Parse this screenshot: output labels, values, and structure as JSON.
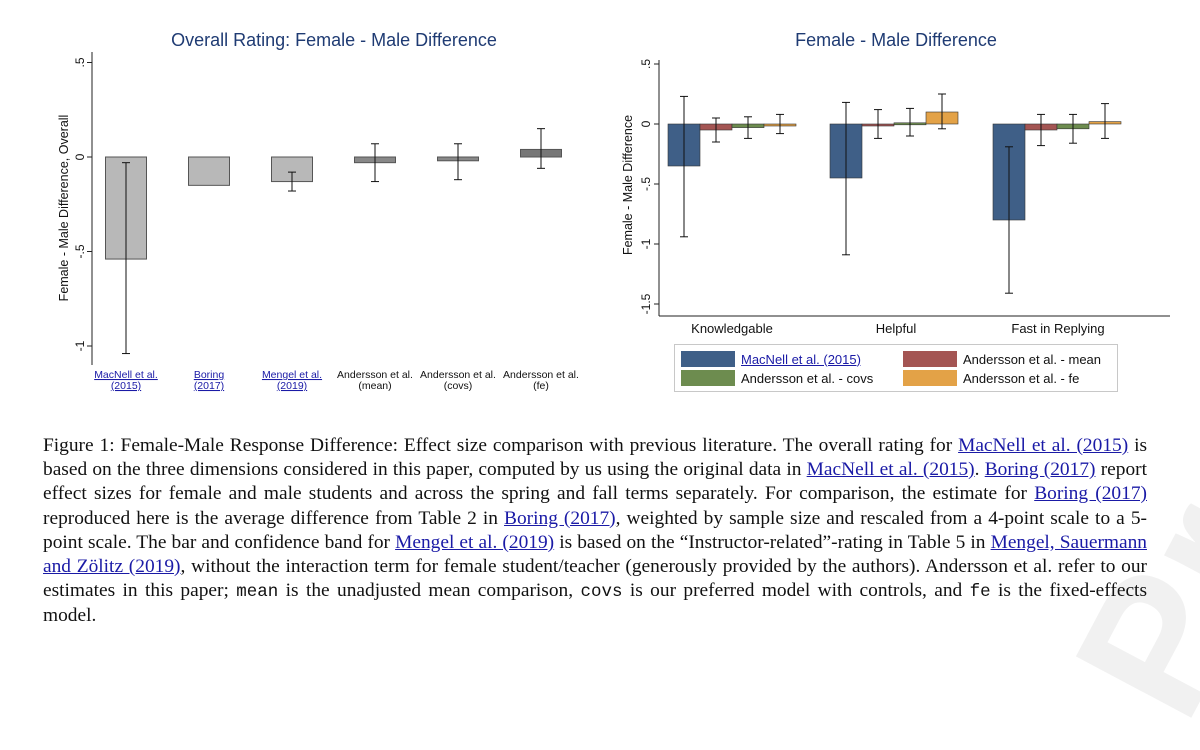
{
  "watermark": "Preview",
  "left_chart": {
    "title": "Overall Rating: Female - Male Difference",
    "ylabel": "Female - Male Difference, Overall",
    "yticks": [
      ".5",
      "0",
      "-.5",
      "-1"
    ],
    "categories": [
      {
        "line1": "MacNell et al.",
        "line2": "(2015)",
        "link": true
      },
      {
        "line1": "Boring",
        "line2": "(2017)",
        "link": true
      },
      {
        "line1": "Mengel et al.",
        "line2": "(2019)",
        "link": true
      },
      {
        "line1": "Andersson et al.",
        "line2": "(mean)",
        "link": false
      },
      {
        "line1": "Andersson et al.",
        "line2": "(covs)",
        "link": false
      },
      {
        "line1": "Andersson et al.",
        "line2": "(fe)",
        "link": false
      }
    ]
  },
  "right_chart": {
    "title": "Female - Male Difference",
    "ylabel": "Female - Male Difference",
    "yticks": [
      ".5",
      "0",
      "-.5",
      "-1",
      "-1.5"
    ],
    "groups": [
      "Knowledgable",
      "Helpful",
      "Fast in Replying"
    ],
    "legend": [
      {
        "label": "MacNell et al. (2015)",
        "color": "#3f5f87",
        "link": true
      },
      {
        "label": "Andersson et al. - mean",
        "color": "#a45553",
        "link": false
      },
      {
        "label": "Andersson et al. - covs",
        "color": "#6d8c4f",
        "link": false
      },
      {
        "label": "Andersson et al. - fe",
        "color": "#e3a247",
        "link": false
      }
    ]
  },
  "chart_data": [
    {
      "type": "bar",
      "title": "Overall Rating: Female - Male Difference",
      "xlabel": "",
      "ylabel": "Female - Male Difference, Overall",
      "ylim": [
        -1.05,
        0.5
      ],
      "categories": [
        "MacNell et al. (2015)",
        "Boring (2017)",
        "Mengel et al. (2019)",
        "Andersson et al. (mean)",
        "Andersson et al. (covs)",
        "Andersson et al. (fe)"
      ],
      "values": [
        -0.54,
        -0.15,
        -0.13,
        -0.03,
        -0.02,
        0.04
      ],
      "ci_low": [
        -1.04,
        null,
        -0.18,
        -0.13,
        -0.12,
        -0.06
      ],
      "ci_high": [
        -0.03,
        null,
        -0.08,
        0.07,
        0.07,
        0.15
      ],
      "color": "#b8b8b8",
      "grid": false
    },
    {
      "type": "bar",
      "title": "Female - Male Difference",
      "xlabel": "",
      "ylabel": "Female - Male Difference",
      "ylim": [
        -1.55,
        0.5
      ],
      "categories": [
        "Knowledgable",
        "Helpful",
        "Fast in Replying"
      ],
      "series": [
        {
          "name": "MacNell et al. (2015)",
          "color": "#3f5f87",
          "values": [
            -0.35,
            -0.45,
            -0.8
          ],
          "ci_low": [
            -0.94,
            -1.09,
            -1.41
          ],
          "ci_high": [
            0.23,
            0.18,
            -0.19
          ]
        },
        {
          "name": "Andersson et al. - mean",
          "color": "#a45553",
          "values": [
            -0.05,
            0.0,
            -0.05
          ],
          "ci_low": [
            -0.15,
            -0.12,
            -0.18
          ],
          "ci_high": [
            0.05,
            0.12,
            0.08
          ]
        },
        {
          "name": "Andersson et al. - covs",
          "color": "#6d8c4f",
          "values": [
            -0.03,
            0.01,
            -0.04
          ],
          "ci_low": [
            -0.12,
            -0.1,
            -0.16
          ],
          "ci_high": [
            0.06,
            0.13,
            0.08
          ]
        },
        {
          "name": "Andersson et al. - fe",
          "color": "#e3a247",
          "values": [
            0.0,
            0.1,
            0.02
          ],
          "ci_low": [
            -0.08,
            -0.04,
            -0.12
          ],
          "ci_high": [
            0.08,
            0.25,
            0.17
          ]
        }
      ],
      "legend_position": "bottom",
      "grid": false
    }
  ],
  "caption": {
    "figure_label": "Figure 1:",
    "t1": " Female-Male Response Difference: Effect size comparison with previous literature. The overall rating for ",
    "link_macnell_1": "MacNell et al. (2015)",
    "t2": " is based on the three dimensions considered in this paper, computed by us using the original data in ",
    "link_macnell_2": "MacNell et al. (2015)",
    "t3": ". ",
    "link_boring_1": "Boring (2017)",
    "t4": " report effect sizes for female and male students and across the spring and fall terms separately. For comparison, the estimate for ",
    "link_boring_2": "Boring (2017)",
    "t5": " reproduced here is the average difference from Table 2 in ",
    "link_boring_3": "Boring (2017)",
    "t6": ", weighted by sample size and rescaled from a 4-point scale to a 5-point scale. The bar and confidence band for ",
    "link_mengel_1": "Mengel et al. (2019)",
    "t7": " is based on the “Instructor-related”-rating in Table 5 in ",
    "link_mengel_2": "Mengel, Sauermann and Zölitz (2019)",
    "t8": ", without the interaction term for female student/teacher (generously provided by the authors). Andersson et al. refer to our estimates in this paper; ",
    "code_mean": "mean",
    "t9": " is the unadjusted mean comparison, ",
    "code_covs": "covs",
    "t10": " is our preferred model with controls, and ",
    "code_fe": "fe",
    "t11": " is the fixed-effects model."
  }
}
